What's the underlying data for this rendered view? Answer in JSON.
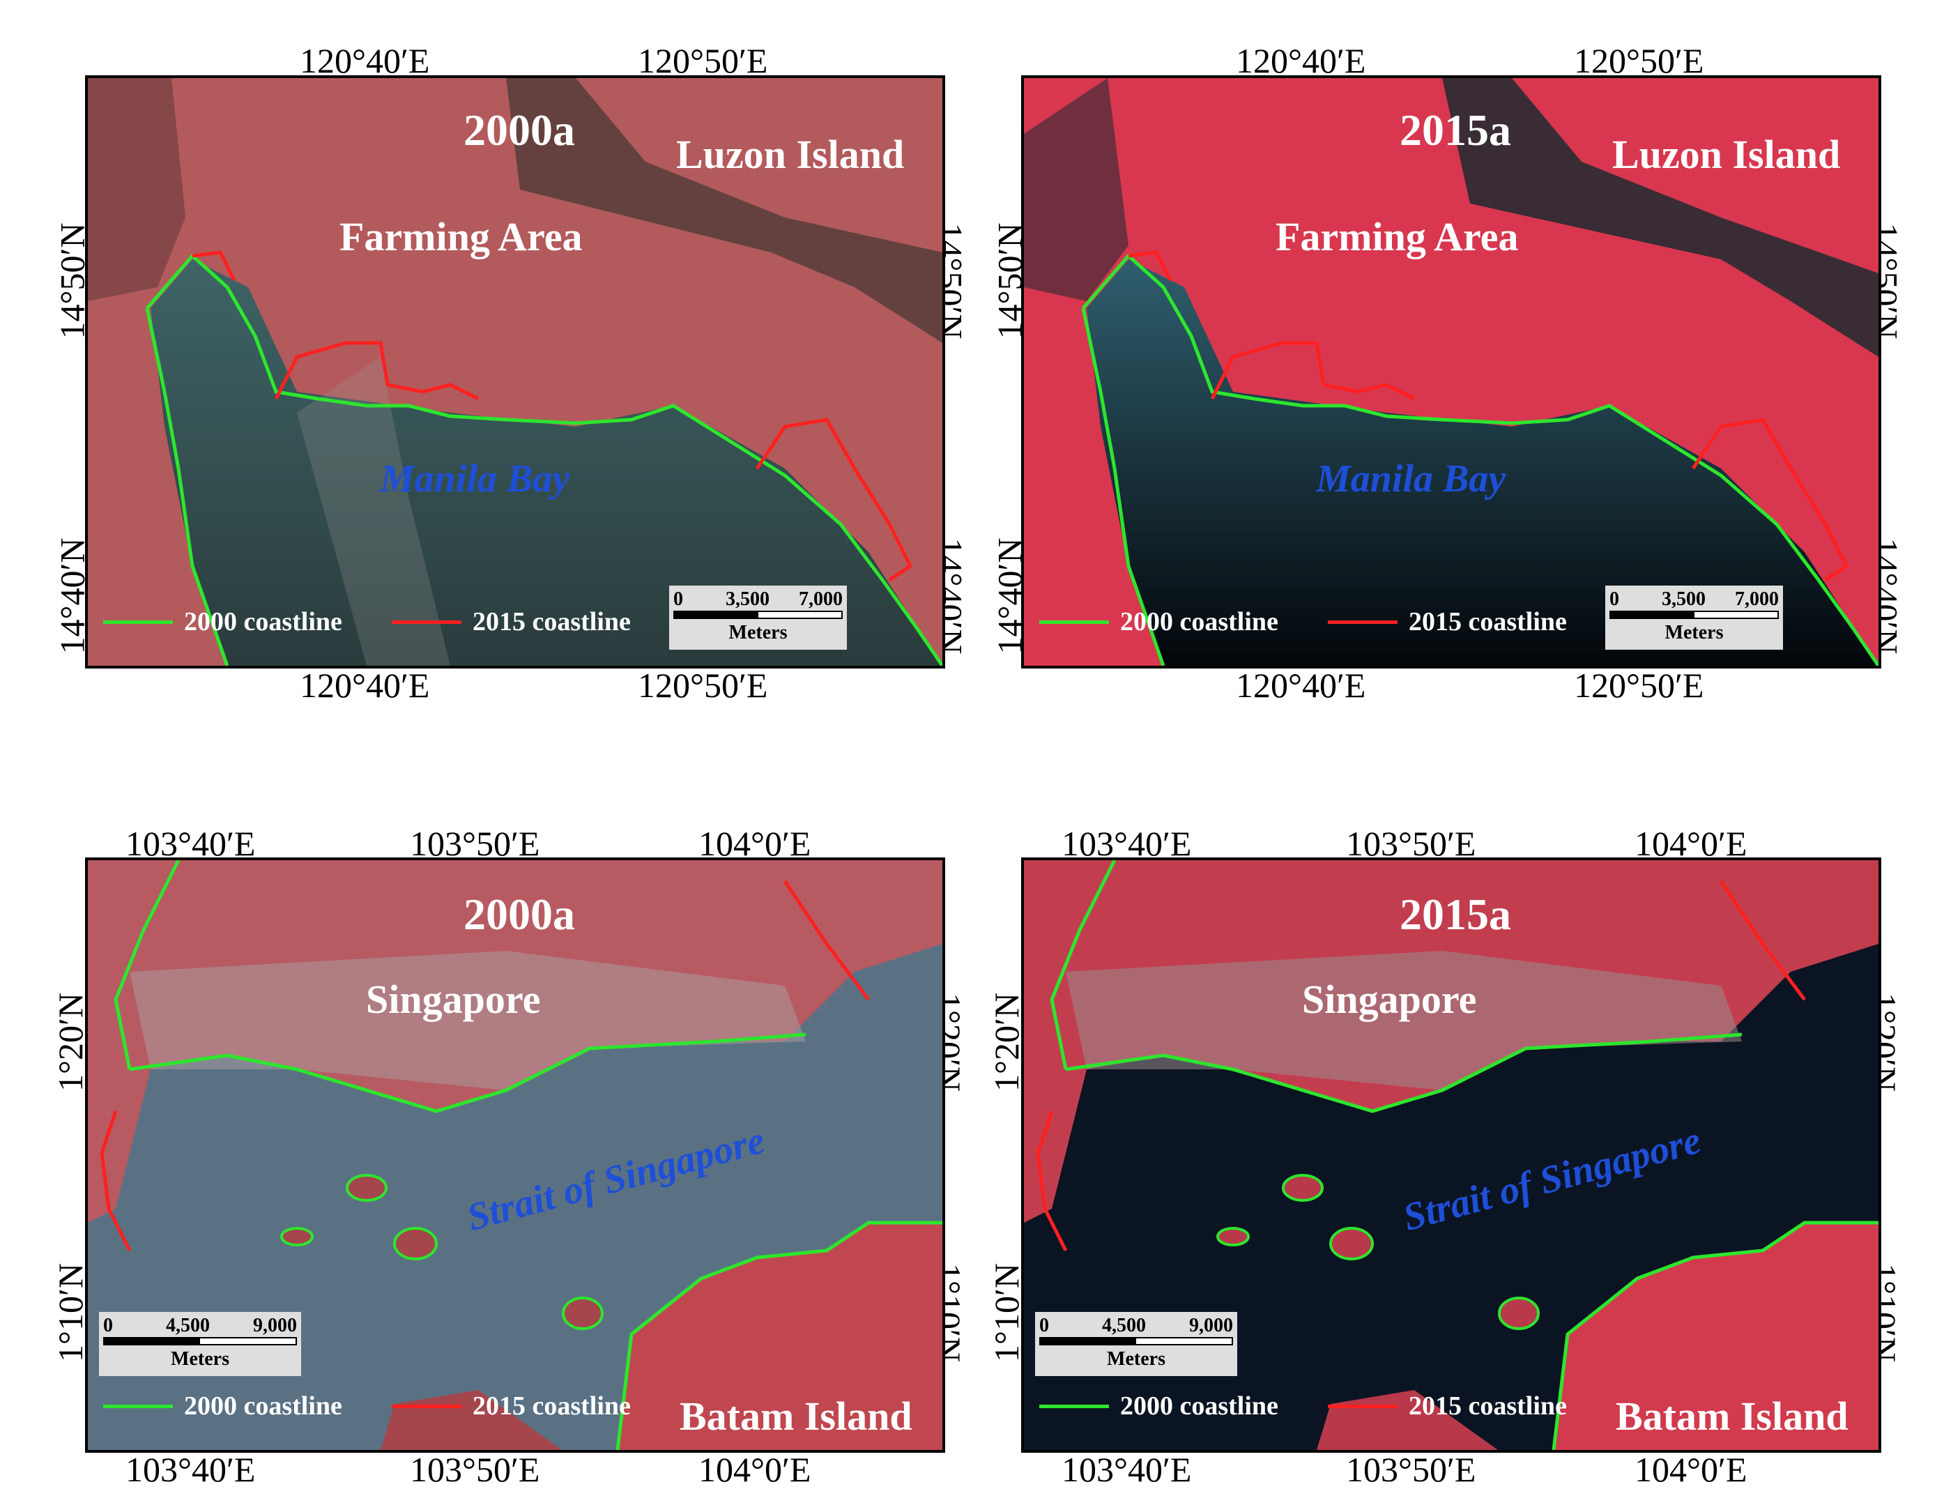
{
  "colors": {
    "coast_2000": "#2de62d",
    "coast_2015": "#ff2020",
    "water_label": "#1e4fd8",
    "land": "#b8464f"
  },
  "panels": [
    {
      "year": "2000a",
      "top_lon": [
        "120°40′E",
        "120°50′E"
      ],
      "bottom_lon": [
        "120°40′E",
        "120°50′E"
      ],
      "lat": [
        "14°50′N",
        "14°40′N"
      ],
      "labels": {
        "island": "Luzon Island",
        "area": "Farming Area",
        "water": "Manila Bay"
      },
      "legend": {
        "l2000": "2000 coastline",
        "l2015": "2015 coastline"
      },
      "scale": {
        "n0": "0",
        "n1": "3,500",
        "n2": "7,000",
        "unit": "Meters"
      }
    },
    {
      "year": "2015a",
      "top_lon": [
        "120°40′E",
        "120°50′E"
      ],
      "bottom_lon": [
        "120°40′E",
        "120°50′E"
      ],
      "lat": [
        "14°50′N",
        "14°40′N"
      ],
      "labels": {
        "island": "Luzon Island",
        "area": "Farming Area",
        "water": "Manila Bay"
      },
      "legend": {
        "l2000": "2000 coastline",
        "l2015": "2015 coastline"
      },
      "scale": {
        "n0": "0",
        "n1": "3,500",
        "n2": "7,000",
        "unit": "Meters"
      }
    },
    {
      "year": "2000a",
      "top_lon": [
        "103°40′E",
        "103°50′E",
        "104°0′E"
      ],
      "bottom_lon": [
        "103°40′E",
        "103°50′E",
        "104°0′E"
      ],
      "lat": [
        "1°20′N",
        "1°10′N"
      ],
      "labels": {
        "city": "Singapore",
        "water": "Strait of Singapore",
        "island": "Batam Island"
      },
      "legend": {
        "l2000": "2000 coastline",
        "l2015": "2015 coastline"
      },
      "scale": {
        "n0": "0",
        "n1": "4,500",
        "n2": "9,000",
        "unit": "Meters"
      }
    },
    {
      "year": "2015a",
      "top_lon": [
        "103°40′E",
        "103°50′E",
        "104°0′E"
      ],
      "bottom_lon": [
        "103°40′E",
        "103°50′E",
        "104°0′E"
      ],
      "lat": [
        "1°20′N",
        "1°10′N"
      ],
      "labels": {
        "city": "Singapore",
        "water": "Strait of Singapore",
        "island": "Batam Island"
      },
      "legend": {
        "l2000": "2000 coastline",
        "l2015": "2015 coastline"
      },
      "scale": {
        "n0": "0",
        "n1": "4,500",
        "n2": "9,000",
        "unit": "Meters"
      }
    }
  ]
}
